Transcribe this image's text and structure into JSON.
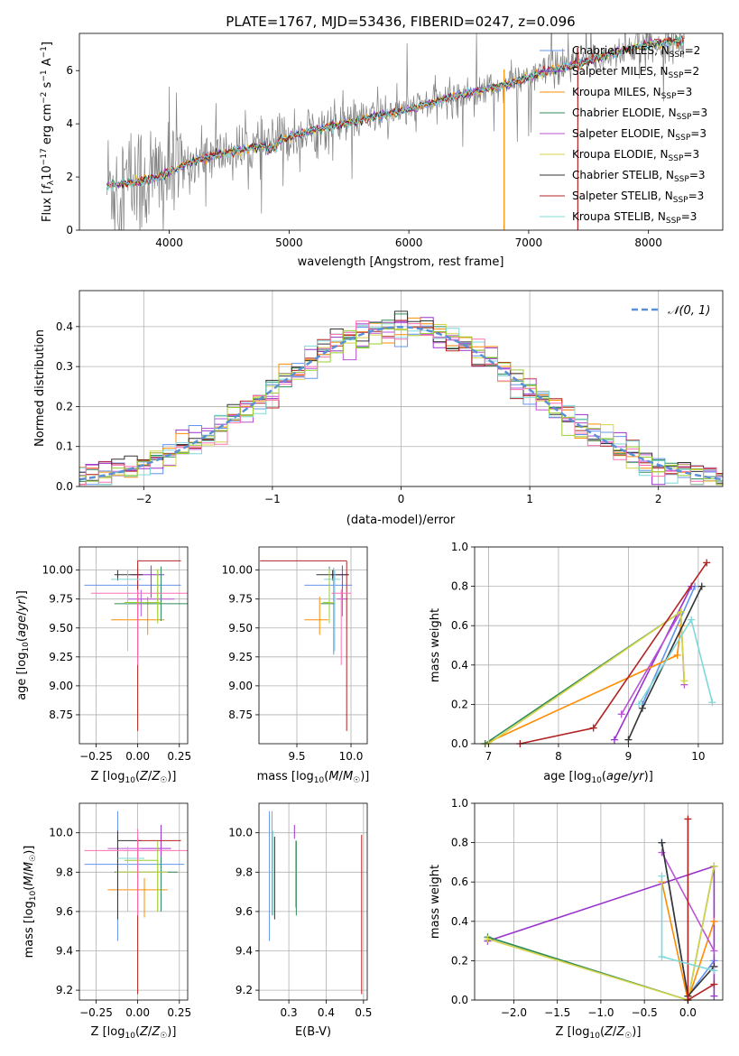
{
  "figure": {
    "title": "PLATE=1767, MJD=53436, FIBERID=0247, z=0.096"
  },
  "palette": {
    "chabrier_miles": "#6495ed",
    "salpeter_miles": "#9932cc",
    "kroupa_miles": "#ff8c00",
    "chabrier_elodie": "#2e8b57",
    "salpeter_elodie": "#ba55d3",
    "kroupa_elodie": "#d4d44a",
    "chabrier_stelib": "#333333",
    "salpeter_stelib": "#b22222",
    "kroupa_stelib": "#7fd8d8",
    "observed": "#808080",
    "normal_curve": "#5b8fd6",
    "pink_extra": "#ff6eb4",
    "lime_extra": "#9acd32"
  },
  "chart_data": [
    {
      "id": "spectrum",
      "type": "line",
      "title": "PLATE=1767, MJD=53436, FIBERID=0247, z=0.096",
      "xlabel": "wavelength [Angstrom, rest frame]",
      "ylabel": "Flux [fλ 10⁻¹⁷ erg cm⁻² s⁻¹ A⁻¹]",
      "xlim": [
        3250,
        8620
      ],
      "ylim": [
        0,
        7.4
      ],
      "xticks": [
        4000,
        5000,
        6000,
        7000,
        8000
      ],
      "yticks": [
        0,
        2,
        4,
        6
      ],
      "legend_position": "top-right",
      "legend": [
        "Chabrier MILES, N_SSP=2",
        "Salpeter MILES, N_SSP=2",
        "Kroupa MILES, N_SSP=3",
        "Chabrier ELODIE, N_SSP=3",
        "Salpeter ELODIE, N_SSP=3",
        "Kroupa ELODIE, N_SSP=3",
        "Chabrier STELIB, N_SSP=3",
        "Salpeter STELIB, N_SSP=3",
        "Kroupa STELIB, N_SSP=3"
      ],
      "continuum": {
        "x": [
          3500,
          3700,
          3900,
          4000,
          4200,
          4400,
          4600,
          4800,
          5000,
          5200,
          5400,
          5600,
          5800,
          6000,
          6200,
          6400,
          6600,
          6800,
          7000,
          7200,
          7400,
          7600,
          7800,
          8000,
          8200
        ],
        "y": [
          1.7,
          1.8,
          1.95,
          2.2,
          2.6,
          2.85,
          3.0,
          3.2,
          3.5,
          3.75,
          3.95,
          4.15,
          4.35,
          4.55,
          4.8,
          5.05,
          5.25,
          5.45,
          5.75,
          6.0,
          6.25,
          6.5,
          6.75,
          7.0,
          7.1
        ]
      }
    },
    {
      "id": "residuals",
      "type": "line",
      "xlabel": "(data-model)/error",
      "ylabel": "Normed distribution",
      "xlim": [
        -2.5,
        2.5
      ],
      "ylim": [
        0,
        0.49
      ],
      "xticks": [
        -2,
        -1,
        0,
        1,
        2
      ],
      "yticks": [
        0.0,
        0.1,
        0.2,
        0.3,
        0.4
      ],
      "grid": true,
      "legend_position": "top-right",
      "legend": [
        "𝒩(0, 1)"
      ]
    },
    {
      "id": "age_vs_Z",
      "type": "scatter",
      "xlabel": "Z [log10(Z/Z☉)]",
      "ylabel": "age [log10(age/yr)]",
      "xlim": [
        -0.35,
        0.3
      ],
      "ylim": [
        8.5,
        10.2
      ],
      "xticks": [
        -0.25,
        0.0,
        0.25
      ],
      "yticks": [
        8.75,
        9.0,
        9.25,
        9.5,
        9.75,
        10.0
      ],
      "grid": true,
      "points": [
        {
          "model": "chabrier_miles",
          "x": 0.0,
          "y": 9.87,
          "xerr": [
            0.32,
            0.26
          ],
          "yerr": [
            0.6,
            0.15
          ]
        },
        {
          "model": "salpeter_miles",
          "x": 0.08,
          "y": 9.96,
          "xerr": [
            0.12,
            0.08
          ],
          "yerr": [
            0.2,
            0.08
          ]
        },
        {
          "model": "kroupa_miles",
          "x": 0.06,
          "y": 9.57,
          "xerr": [
            0.22,
            0.1
          ],
          "yerr": [
            0.13,
            0.2
          ]
        },
        {
          "model": "chabrier_elodie",
          "x": 0.14,
          "y": 9.71,
          "xerr": [
            0.28,
            0.16
          ],
          "yerr": [
            0.15,
            0.32
          ]
        },
        {
          "model": "salpeter_elodie",
          "x": 0.02,
          "y": 9.75,
          "xerr": [
            0.08,
            0.2
          ],
          "yerr": [
            0.15,
            0.08
          ]
        },
        {
          "model": "kroupa_elodie",
          "x": 0.12,
          "y": 9.72,
          "xerr": [
            0.18,
            0.02
          ],
          "yerr": [
            0.15,
            0.28
          ]
        },
        {
          "model": "chabrier_stelib",
          "x": -0.12,
          "y": 9.96,
          "xerr": [
            0.02,
            0.15
          ],
          "yerr": [
            0.05,
            0.04
          ]
        },
        {
          "model": "salpeter_stelib",
          "x": 0.0,
          "y": 10.08,
          "xerr": [
            0.0,
            0.26
          ],
          "yerr": [
            1.47,
            0.0
          ]
        },
        {
          "model": "kroupa_stelib",
          "x": -0.06,
          "y": 9.92,
          "xerr": [
            0.1,
            0.08
          ],
          "yerr": [
            0.62,
            0.08
          ]
        },
        {
          "model": "pink_extra",
          "x": 0.0,
          "y": 9.8,
          "xerr": [
            0.28,
            0.36
          ],
          "yerr": [
            0.62,
            0.03
          ]
        },
        {
          "model": "lime_extra",
          "x": 0.12,
          "y": 9.72,
          "xerr": [
            0.2,
            0.0
          ],
          "yerr": [
            0.18,
            0.29
          ]
        }
      ]
    },
    {
      "id": "age_vs_mass",
      "type": "scatter",
      "xlabel": "mass [log10(M/M☉)]",
      "xlim": [
        9.15,
        10.15
      ],
      "ylim": [
        8.5,
        10.2
      ],
      "xticks": [
        9.5,
        10.0
      ],
      "yticks": [
        8.75,
        9.0,
        9.25,
        9.5,
        9.75,
        10.0
      ],
      "grid": true,
      "points": [
        {
          "model": "chabrier_miles",
          "x": 9.84,
          "y": 9.87,
          "xerr": [
            0.27,
            0.17
          ],
          "yerr": [
            0.6,
            0.15
          ]
        },
        {
          "model": "salpeter_miles",
          "x": 9.92,
          "y": 9.96,
          "xerr": [
            0.1,
            0.06
          ],
          "yerr": [
            0.2,
            0.08
          ]
        },
        {
          "model": "kroupa_miles",
          "x": 9.71,
          "y": 9.57,
          "xerr": [
            0.14,
            0.08
          ],
          "yerr": [
            0.13,
            0.2
          ]
        },
        {
          "model": "chabrier_elodie",
          "x": 9.8,
          "y": 9.71,
          "xerr": [
            0.08,
            0.05
          ],
          "yerr": [
            0.15,
            0.32
          ]
        },
        {
          "model": "salpeter_elodie",
          "x": 9.92,
          "y": 9.75,
          "xerr": [
            0.05,
            0.05
          ],
          "yerr": [
            0.15,
            0.08
          ]
        },
        {
          "model": "kroupa_elodie",
          "x": 9.8,
          "y": 9.72,
          "xerr": [
            0.06,
            0.05
          ],
          "yerr": [
            0.15,
            0.28
          ]
        },
        {
          "model": "chabrier_stelib",
          "x": 9.83,
          "y": 9.96,
          "xerr": [
            0.15,
            0.15
          ],
          "yerr": [
            0.05,
            0.04
          ]
        },
        {
          "model": "salpeter_stelib",
          "x": 9.96,
          "y": 10.08,
          "xerr": [
            0.8,
            0.0
          ],
          "yerr": [
            1.47,
            0.0
          ]
        },
        {
          "model": "kroupa_stelib",
          "x": 9.85,
          "y": 9.92,
          "xerr": [
            0.1,
            0.05
          ],
          "yerr": [
            0.62,
            0.08
          ]
        },
        {
          "model": "pink_extra",
          "x": 9.91,
          "y": 9.8,
          "xerr": [
            0.09,
            0.09
          ],
          "yerr": [
            0.62,
            0.03
          ]
        },
        {
          "model": "lime_extra",
          "x": 9.8,
          "y": 9.72,
          "xerr": [
            0.06,
            0.0
          ],
          "yerr": [
            0.18,
            0.29
          ]
        }
      ]
    },
    {
      "id": "weight_vs_age",
      "type": "line",
      "xlabel": "age [log10(age/yr)]",
      "ylabel": "mass weight",
      "xlim": [
        6.8,
        10.35
      ],
      "ylim": [
        0,
        1.0
      ],
      "xticks": [
        7,
        8,
        9,
        10
      ],
      "yticks": [
        0.0,
        0.2,
        0.4,
        0.6,
        0.8,
        1.0
      ],
      "grid": true,
      "series": [
        {
          "model": "chabrier_miles",
          "x": [
            9.2,
            9.95
          ],
          "y": [
            0.2,
            0.8
          ]
        },
        {
          "model": "salpeter_miles",
          "x": [
            8.8,
            9.9
          ],
          "y": [
            0.02,
            0.8
          ]
        },
        {
          "model": "kroupa_miles",
          "x": [
            6.95,
            9.7,
            9.75
          ],
          "y": [
            0.0,
            0.45,
            0.6
          ]
        },
        {
          "model": "chabrier_elodie",
          "x": [
            6.95,
            9.75
          ],
          "y": [
            0.0,
            0.67
          ]
        },
        {
          "model": "salpeter_elodie",
          "x": [
            8.9,
            9.75,
            9.8
          ],
          "y": [
            0.15,
            0.67,
            0.3
          ]
        },
        {
          "model": "kroupa_elodie",
          "x": [
            7.0,
            9.75,
            9.8
          ],
          "y": [
            0.0,
            0.67,
            0.32
          ]
        },
        {
          "model": "chabrier_stelib",
          "x": [
            9.0,
            9.2,
            10.05
          ],
          "y": [
            0.02,
            0.18,
            0.8
          ]
        },
        {
          "model": "salpeter_stelib",
          "x": [
            7.45,
            8.5,
            10.12
          ],
          "y": [
            0.0,
            0.08,
            0.92
          ]
        },
        {
          "model": "kroupa_stelib",
          "x": [
            9.15,
            9.9,
            10.2
          ],
          "y": [
            0.2,
            0.63,
            0.21
          ]
        }
      ]
    },
    {
      "id": "mass_vs_Z",
      "type": "scatter",
      "xlabel": "Z [log10(Z/Z☉)]",
      "ylabel": "mass [log10(M/M☉)]",
      "xlim": [
        -0.35,
        0.3
      ],
      "ylim": [
        9.15,
        10.15
      ],
      "xticks": [
        -0.25,
        0.0,
        0.25
      ],
      "yticks": [
        9.2,
        9.4,
        9.6,
        9.8,
        10.0
      ],
      "grid": true,
      "points": [
        {
          "model": "chabrier_miles",
          "x": -0.12,
          "y": 9.84,
          "xerr": [
            0.2,
            0.4
          ],
          "yerr": [
            0.39,
            0.27
          ]
        },
        {
          "model": "salpeter_miles",
          "x": 0.14,
          "y": 9.92,
          "xerr": [
            0.12,
            0.06
          ],
          "yerr": [
            0.1,
            0.12
          ]
        },
        {
          "model": "kroupa_miles",
          "x": 0.04,
          "y": 9.71,
          "xerr": [
            0.22,
            0.14
          ],
          "yerr": [
            0.14,
            0.06
          ]
        },
        {
          "model": "chabrier_elodie",
          "x": 0.14,
          "y": 9.8,
          "xerr": [
            0.28,
            0.1
          ],
          "yerr": [
            0.2,
            0.08
          ]
        },
        {
          "model": "salpeter_elodie",
          "x": 0.0,
          "y": 9.92,
          "xerr": [
            0.18,
            0.2
          ],
          "yerr": [
            0.06,
            0.06
          ]
        },
        {
          "model": "kroupa_elodie",
          "x": 0.12,
          "y": 9.8,
          "xerr": [
            0.25,
            0.06
          ],
          "yerr": [
            0.2,
            0.06
          ]
        },
        {
          "model": "chabrier_stelib",
          "x": -0.12,
          "y": 9.96,
          "xerr": [
            0.0,
            0.14
          ],
          "yerr": [
            0.4,
            0.05
          ]
        },
        {
          "model": "salpeter_stelib",
          "x": 0.0,
          "y": 9.96,
          "xerr": [
            0.0,
            0.26
          ],
          "yerr": [
            0.78,
            0.0
          ]
        },
        {
          "model": "kroupa_stelib",
          "x": -0.06,
          "y": 9.87,
          "xerr": [
            0.06,
            0.1
          ],
          "yerr": [
            0.27,
            0.06
          ]
        },
        {
          "model": "pink_extra",
          "x": 0.0,
          "y": 9.91,
          "xerr": [
            0.32,
            0.36
          ],
          "yerr": [
            0.33,
            0.11
          ]
        },
        {
          "model": "lime_extra",
          "x": 0.12,
          "y": 9.86,
          "xerr": [
            0.2,
            0.0
          ],
          "yerr": [
            0.26,
            0.1
          ]
        }
      ]
    },
    {
      "id": "mass_vs_ebv",
      "type": "scatter",
      "xlabel": "E(B-V)",
      "xlim": [
        0.22,
        0.51
      ],
      "ylim": [
        9.15,
        10.15
      ],
      "xticks": [
        0.3,
        0.4,
        0.5
      ],
      "yticks": [
        9.2,
        9.4,
        9.6,
        9.8,
        10.0
      ],
      "grid": true,
      "points": [
        {
          "model": "chabrier_miles",
          "x": 0.248,
          "y": 9.84,
          "yerr": [
            0.39,
            0.27
          ]
        },
        {
          "model": "pink_extra",
          "x": 0.255,
          "y": 9.91,
          "yerr": [
            0.33,
            0.2
          ]
        },
        {
          "model": "chabrier_stelib",
          "x": 0.262,
          "y": 9.88,
          "yerr": [
            0.32,
            0.1
          ]
        },
        {
          "model": "kroupa_stelib",
          "x": 0.258,
          "y": 9.86,
          "yerr": [
            0.28,
            0.15
          ]
        },
        {
          "model": "salpeter_miles",
          "x": 0.315,
          "y": 10.0,
          "yerr": [
            0.03,
            0.04
          ]
        },
        {
          "model": "chabrier_elodie",
          "x": 0.32,
          "y": 9.8,
          "yerr": [
            0.22,
            0.16
          ]
        },
        {
          "model": "lime_extra",
          "x": 0.318,
          "y": 9.82,
          "yerr": [
            0.2,
            0.14
          ]
        },
        {
          "model": "salpeter_stelib",
          "x": 0.495,
          "y": 9.58,
          "yerr": [
            0.4,
            0.41
          ]
        }
      ]
    },
    {
      "id": "weight_vs_Z",
      "type": "line",
      "xlabel": "Z [log10(Z/Z☉)]",
      "ylabel": "mass weight",
      "xlim": [
        -2.45,
        0.4
      ],
      "ylim": [
        0,
        1.0
      ],
      "xticks": [
        -2.0,
        -1.5,
        -1.0,
        -0.5,
        0.0
      ],
      "yticks": [
        0.0,
        0.2,
        0.4,
        0.6,
        0.8,
        1.0
      ],
      "grid": true,
      "series": [
        {
          "model": "chabrier_miles",
          "x": [
            -0.3,
            0.0,
            0.3
          ],
          "y": [
            0.8,
            0.02,
            0.2
          ]
        },
        {
          "model": "salpeter_miles",
          "x": [
            -2.3,
            0.3,
            0.3
          ],
          "y": [
            0.3,
            0.68,
            0.02
          ]
        },
        {
          "model": "kroupa_miles",
          "x": [
            -0.3,
            0.0,
            0.3
          ],
          "y": [
            0.6,
            0.0,
            0.4
          ]
        },
        {
          "model": "chabrier_elodie",
          "x": [
            -2.3,
            0.0,
            0.3
          ],
          "y": [
            0.32,
            0.0,
            0.68
          ]
        },
        {
          "model": "salpeter_elodie",
          "x": [
            -0.3,
            0.3
          ],
          "y": [
            0.75,
            0.25
          ]
        },
        {
          "model": "kroupa_elodie",
          "x": [
            -2.3,
            0.0,
            0.3
          ],
          "y": [
            0.31,
            0.0,
            0.68
          ]
        },
        {
          "model": "chabrier_stelib",
          "x": [
            -0.3,
            0.0,
            0.3
          ],
          "y": [
            0.8,
            0.02,
            0.17
          ]
        },
        {
          "model": "salpeter_stelib",
          "x": [
            0.0,
            0.0,
            0.3
          ],
          "y": [
            0.92,
            0.0,
            0.08
          ]
        },
        {
          "model": "kroupa_stelib",
          "x": [
            -0.3,
            -0.3,
            0.3
          ],
          "y": [
            0.63,
            0.22,
            0.15
          ]
        }
      ]
    }
  ]
}
